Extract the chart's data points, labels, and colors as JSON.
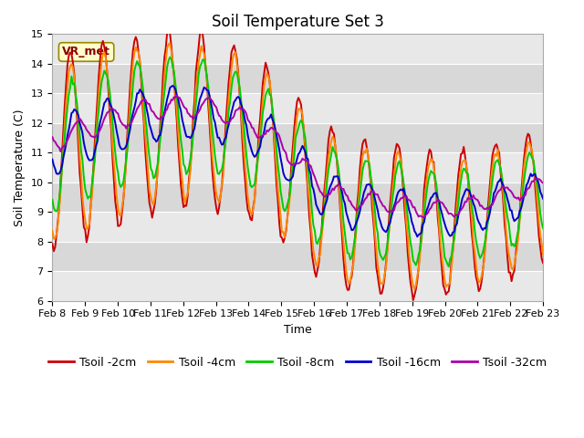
{
  "title": "Soil Temperature Set 3",
  "xlabel": "Time",
  "ylabel": "Soil Temperature (C)",
  "ylim": [
    6.0,
    15.0
  ],
  "yticks": [
    6.0,
    7.0,
    8.0,
    9.0,
    10.0,
    11.0,
    12.0,
    13.0,
    14.0,
    15.0
  ],
  "n_points": 360,
  "colors": {
    "Tsoil -2cm": "#cc0000",
    "Tsoil -4cm": "#ff8800",
    "Tsoil -8cm": "#00cc00",
    "Tsoil -16cm": "#0000cc",
    "Tsoil -32cm": "#aa00aa"
  },
  "annotation_text": "VR_met",
  "bg_color": "#ffffff",
  "plot_bg_color": "#ffffff",
  "band_color_dark": "#dddddd",
  "band_color_light": "#eeeeee",
  "title_fontsize": 12,
  "label_fontsize": 9,
  "tick_fontsize": 8,
  "legend_fontsize": 9
}
